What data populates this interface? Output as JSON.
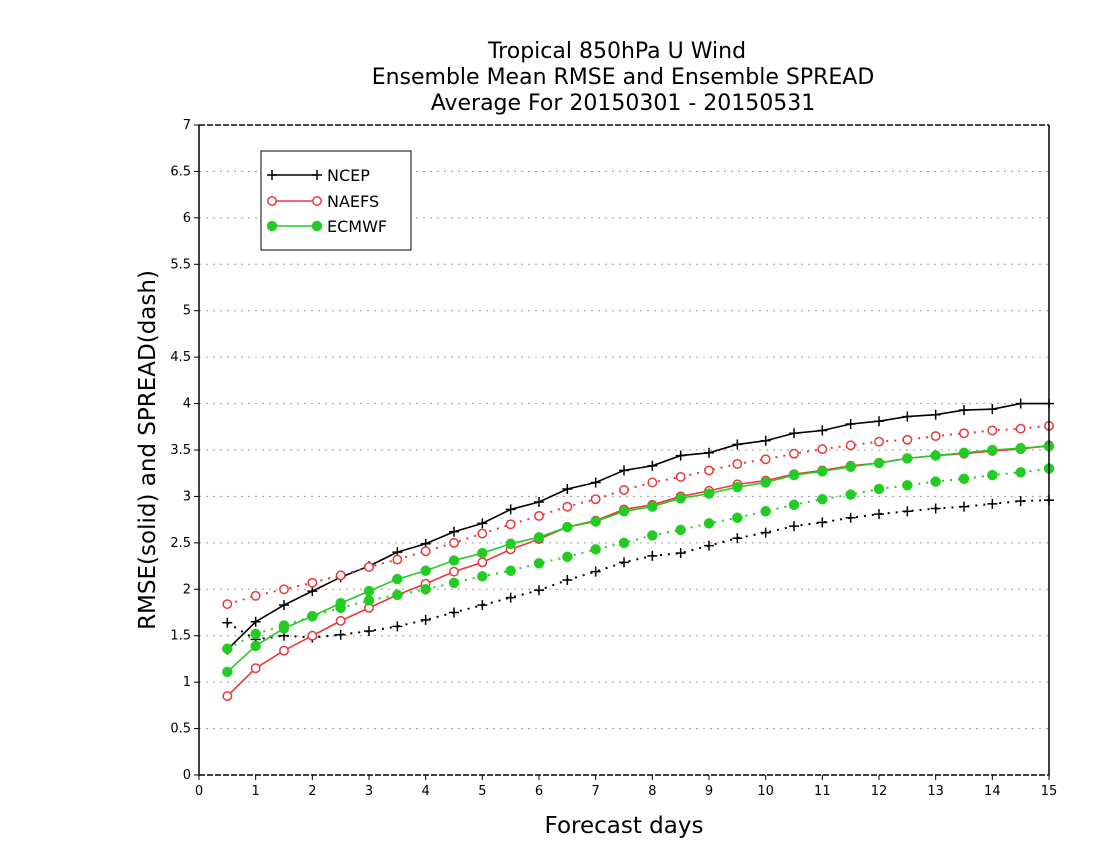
{
  "chart_data": {
    "type": "line",
    "title": [
      "Tropical 850hPa U Wind",
      "Ensemble Mean RMSE and Ensemble SPREAD",
      "Average For 20150301 - 20150531"
    ],
    "xlabel": "Forecast days",
    "ylabel": "RMSE(solid) and SPREAD(dash)",
    "xlim": [
      0,
      15
    ],
    "ylim": [
      0,
      7
    ],
    "xticks": [
      "0",
      "1",
      "2",
      "3",
      "4",
      "5",
      "6",
      "7",
      "8",
      "9",
      "10",
      "11",
      "12",
      "13",
      "14",
      "15"
    ],
    "yticks": [
      "0",
      "0.5",
      "1",
      "1.5",
      "2",
      "2.5",
      "3",
      "3.5",
      "4",
      "4.5",
      "5",
      "5.5",
      "6",
      "6.5",
      "7"
    ],
    "grid": "horizontal dotted",
    "legend_position": "top-left",
    "x": [
      0.5,
      1,
      1.5,
      2,
      2.5,
      3,
      3.5,
      4,
      4.5,
      5,
      5.5,
      6,
      6.5,
      7,
      7.5,
      8,
      8.5,
      9,
      9.5,
      10,
      10.5,
      11,
      11.5,
      12,
      12.5,
      13,
      13.5,
      14,
      14.5,
      15
    ],
    "series": [
      {
        "name": "NCEP",
        "color": "#000000",
        "marker": "plus",
        "rmse": [
          1.35,
          1.65,
          1.83,
          1.98,
          2.13,
          2.25,
          2.4,
          2.49,
          2.62,
          2.71,
          2.86,
          2.94,
          3.08,
          3.15,
          3.28,
          3.33,
          3.44,
          3.47,
          3.56,
          3.6,
          3.68,
          3.71,
          3.78,
          3.81,
          3.86,
          3.88,
          3.93,
          3.94,
          4.0,
          4.0
        ],
        "spread": [
          1.64,
          1.46,
          1.5,
          1.48,
          1.51,
          1.55,
          1.6,
          1.67,
          1.75,
          1.83,
          1.91,
          1.99,
          2.1,
          2.19,
          2.29,
          2.36,
          2.39,
          2.47,
          2.55,
          2.61,
          2.68,
          2.72,
          2.77,
          2.81,
          2.84,
          2.87,
          2.89,
          2.92,
          2.95,
          2.96
        ]
      },
      {
        "name": "NAEFS",
        "color": "#e8383b",
        "marker": "open-circle",
        "rmse": [
          0.85,
          1.15,
          1.34,
          1.5,
          1.66,
          1.8,
          1.94,
          2.06,
          2.19,
          2.29,
          2.43,
          2.54,
          2.67,
          2.74,
          2.86,
          2.91,
          3.0,
          3.06,
          3.13,
          3.17,
          3.24,
          3.28,
          3.33,
          3.36,
          3.41,
          3.44,
          3.46,
          3.49,
          3.51,
          3.55
        ],
        "spread": [
          1.84,
          1.93,
          2.0,
          2.07,
          2.15,
          2.24,
          2.32,
          2.41,
          2.5,
          2.6,
          2.7,
          2.79,
          2.89,
          2.97,
          3.07,
          3.15,
          3.21,
          3.28,
          3.35,
          3.4,
          3.46,
          3.51,
          3.55,
          3.59,
          3.61,
          3.65,
          3.68,
          3.71,
          3.73,
          3.76
        ]
      },
      {
        "name": "ECMWF",
        "color": "#22cc22",
        "marker": "filled-circle",
        "rmse": [
          1.11,
          1.39,
          1.58,
          1.71,
          1.85,
          1.98,
          2.11,
          2.2,
          2.31,
          2.39,
          2.49,
          2.56,
          2.67,
          2.73,
          2.84,
          2.89,
          2.98,
          3.03,
          3.1,
          3.15,
          3.23,
          3.27,
          3.32,
          3.36,
          3.41,
          3.44,
          3.47,
          3.5,
          3.52,
          3.54
        ],
        "spread": [
          1.36,
          1.52,
          1.61,
          1.71,
          1.8,
          1.88,
          1.94,
          2.0,
          2.07,
          2.14,
          2.2,
          2.28,
          2.35,
          2.43,
          2.5,
          2.58,
          2.64,
          2.71,
          2.77,
          2.84,
          2.91,
          2.97,
          3.02,
          3.08,
          3.12,
          3.16,
          3.19,
          3.23,
          3.26,
          3.3
        ]
      }
    ]
  }
}
